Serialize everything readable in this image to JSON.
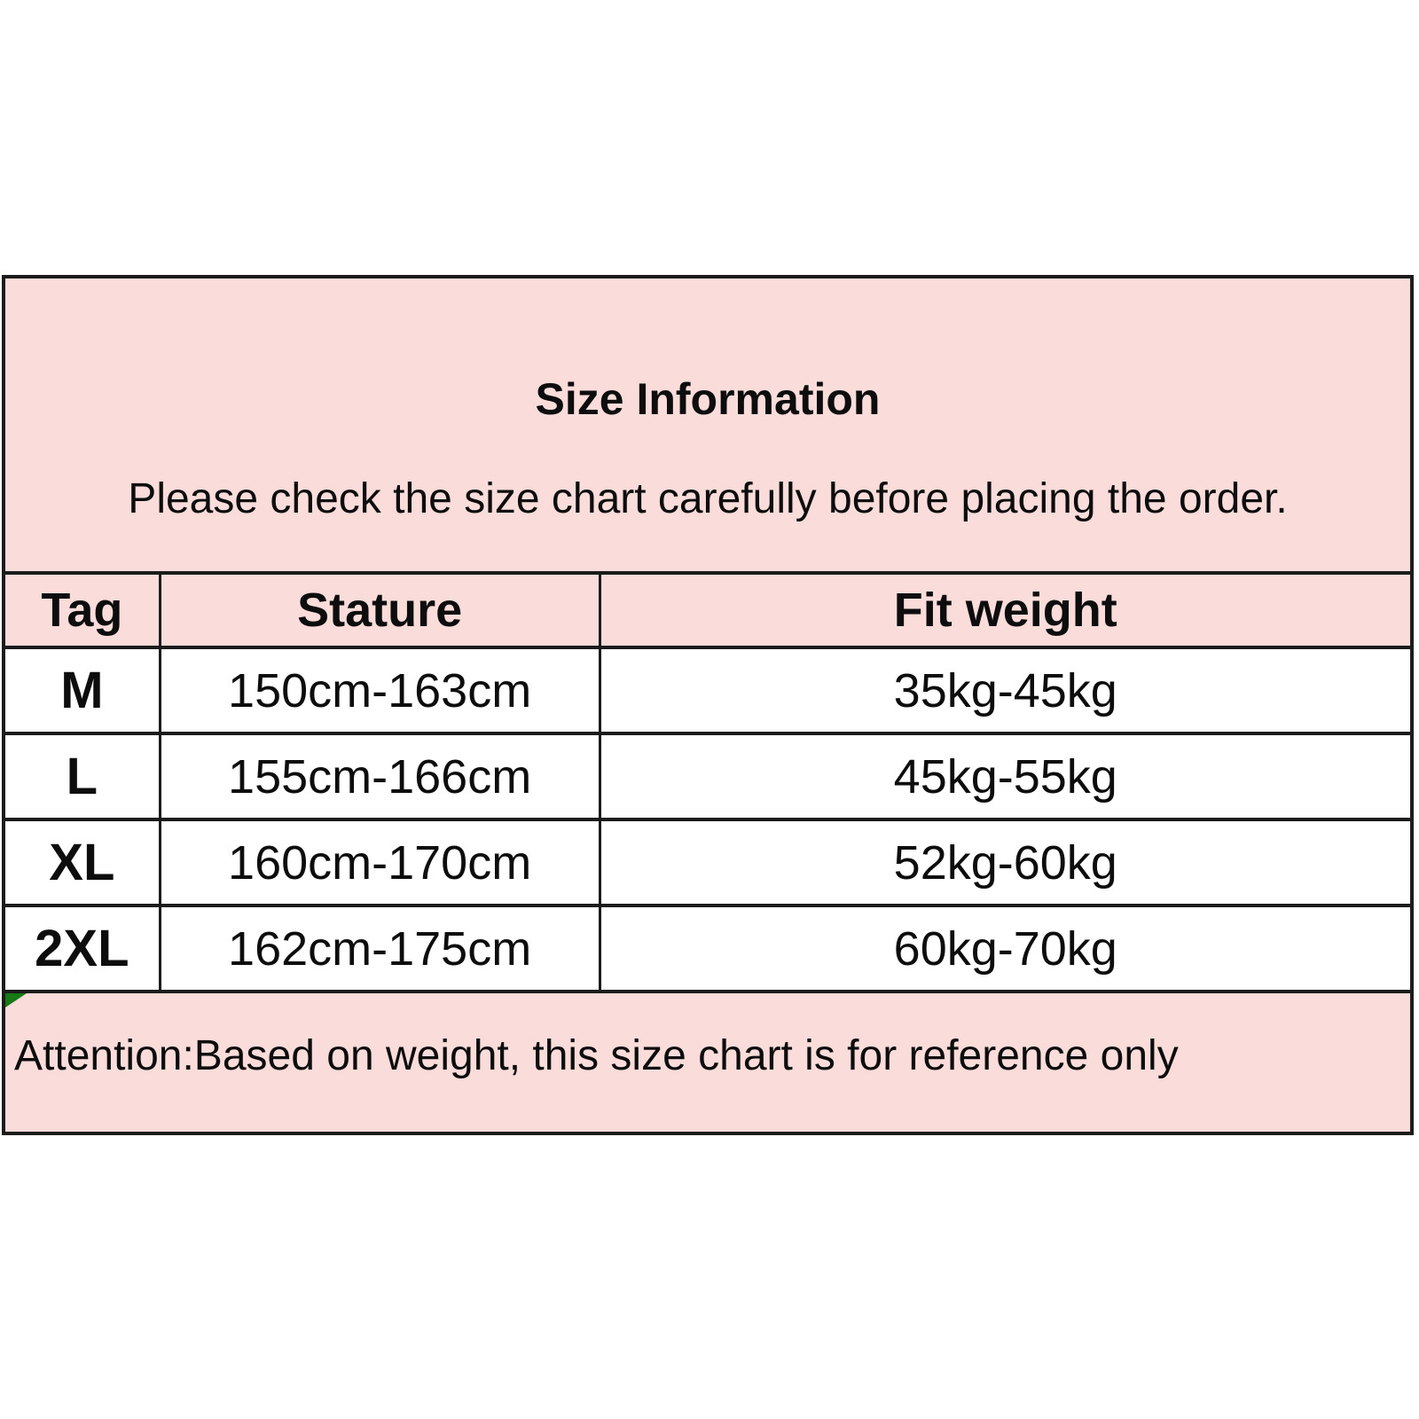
{
  "intro": {
    "title": "Size Information",
    "subtitle": "Please check the size chart carefully before placing the order."
  },
  "table": {
    "columns": [
      "Tag",
      "Stature",
      "Fit weight"
    ],
    "rows": [
      {
        "tag": "M",
        "stature": "150cm-163cm",
        "fit_weight": "35kg-45kg"
      },
      {
        "tag": "L",
        "stature": "155cm-166cm",
        "fit_weight": "45kg-55kg"
      },
      {
        "tag": "XL",
        "stature": "160cm-170cm",
        "fit_weight": "52kg-60kg"
      },
      {
        "tag": "2XL",
        "stature": "162cm-175cm",
        "fit_weight": "60kg-70kg"
      }
    ]
  },
  "attention": {
    "text": "Attention:Based on weight, this size chart is for reference only"
  },
  "colors": {
    "pink": "#fadcda",
    "line": "#1c1c1c",
    "marker_green": "#177a17",
    "text": "#0d0d0d",
    "background": "#ffffff"
  }
}
